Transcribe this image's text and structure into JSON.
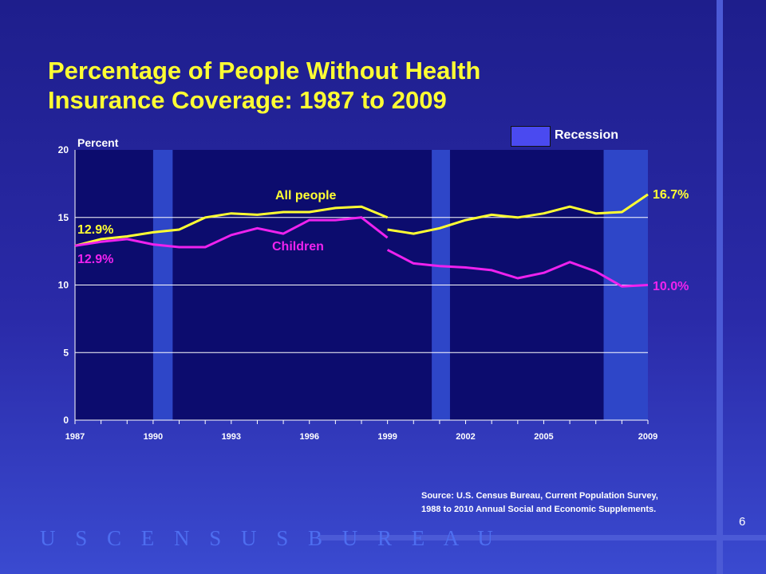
{
  "slide": {
    "title_line1": "Percentage of People Without Health",
    "title_line2": "Insurance Coverage:  1987 to 2009",
    "source_line1": "Source:  U.S. Census Bureau, Current Population Survey,",
    "source_line2": "1988 to 2010 Annual Social and Economic Supplements.",
    "logo_text": "U S C E N S U S B U R E A U",
    "page_number": "6",
    "colors": {
      "background_top": "#1e1e8c",
      "plot_area": "#0c0c6e",
      "recession_band": "#2e46c8",
      "all_people": "#ffff33",
      "children": "#ee22ee",
      "title": "#ffff33"
    }
  },
  "chart_data": {
    "type": "line",
    "ylabel": "Percent",
    "ylim": [
      0,
      20
    ],
    "yticks": [
      0,
      5,
      10,
      15,
      20
    ],
    "xlim": [
      1987,
      2009
    ],
    "xtick_labels": [
      "1987",
      "1990",
      "1993",
      "1996",
      "1999",
      "2002",
      "2005",
      "2009"
    ],
    "grid": "horizontal",
    "legend": {
      "label": "Recession",
      "placement": "top-right"
    },
    "recessions": [
      [
        1990,
        1990.75
      ],
      [
        2000.7,
        2001.4
      ],
      [
        2007.3,
        2009
      ]
    ],
    "series": [
      {
        "name": "All people",
        "color": "#ffff33",
        "segments": [
          {
            "x": [
              1987,
              1988,
              1989,
              1990,
              1991,
              1992,
              1993,
              1994,
              1995,
              1996,
              1997,
              1998,
              1999
            ],
            "y": [
              12.9,
              13.4,
              13.6,
              13.9,
              14.1,
              15.0,
              15.3,
              15.2,
              15.4,
              15.4,
              15.7,
              15.8,
              15.0
            ]
          },
          {
            "x": [
              1999,
              2000,
              2001,
              2002,
              2003,
              2004,
              2005,
              2006,
              2007,
              2008,
              2009
            ],
            "y": [
              14.1,
              13.8,
              14.2,
              14.8,
              15.2,
              15.0,
              15.3,
              15.8,
              15.3,
              15.4,
              16.7
            ]
          }
        ],
        "start_label": "12.9%",
        "end_label": "16.7%"
      },
      {
        "name": "Children",
        "color": "#ee22ee",
        "segments": [
          {
            "x": [
              1987,
              1988,
              1989,
              1990,
              1991,
              1992,
              1993,
              1994,
              1995,
              1996,
              1997,
              1998,
              1999
            ],
            "y": [
              12.9,
              13.2,
              13.4,
              13.0,
              12.8,
              12.8,
              13.7,
              14.2,
              13.8,
              14.8,
              14.8,
              15.0,
              13.5
            ]
          },
          {
            "x": [
              1999,
              2000,
              2001,
              2002,
              2003,
              2004,
              2005,
              2006,
              2007,
              2008,
              2009
            ],
            "y": [
              12.6,
              11.6,
              11.4,
              11.3,
              11.1,
              10.5,
              10.9,
              11.7,
              11.0,
              9.9,
              10.0
            ]
          }
        ],
        "start_label": "12.9%",
        "end_label": "10.0%"
      }
    ]
  }
}
